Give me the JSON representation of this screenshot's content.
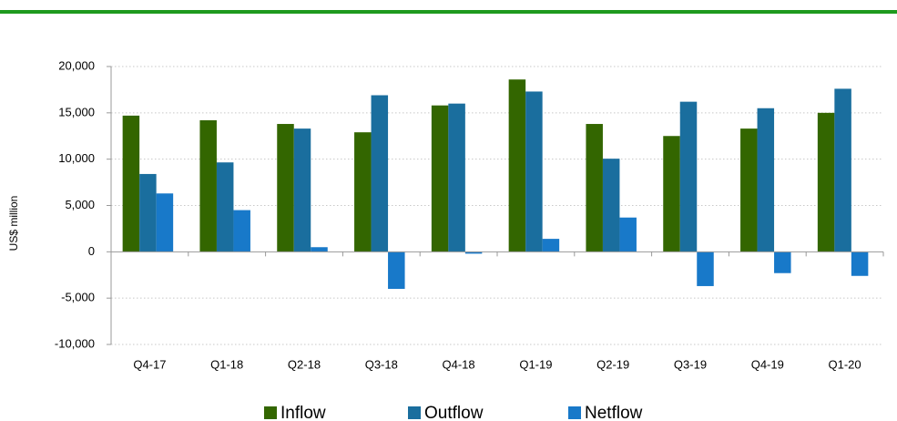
{
  "chart_data": {
    "type": "bar",
    "y_label": "US$ million",
    "categories": [
      "Q4-17",
      "Q1-18",
      "Q2-18",
      "Q3-18",
      "Q4-18",
      "Q1-19",
      "Q2-19",
      "Q3-19",
      "Q4-19",
      "Q1-20"
    ],
    "series": [
      {
        "name": "Inflow",
        "color": "#336600",
        "values": [
          14700,
          14200,
          13800,
          12900,
          15800,
          18600,
          13800,
          12500,
          13300,
          15000
        ]
      },
      {
        "name": "Outflow",
        "color": "#1a6e9e",
        "values": [
          8400,
          9650,
          13300,
          16900,
          16000,
          17300,
          10050,
          16200,
          15500,
          17600
        ]
      },
      {
        "name": "Netflow",
        "color": "#1879c9",
        "values": [
          6300,
          4500,
          500,
          -4000,
          -200,
          1400,
          3700,
          -3700,
          -2300,
          -2600
        ]
      }
    ],
    "ylim": [
      -10000,
      20000
    ],
    "yticks": [
      {
        "value": -10000,
        "label": "-10,000"
      },
      {
        "value": -5000,
        "label": "-5,000"
      },
      0,
      {
        "value": 5000,
        "label": "5,000"
      },
      {
        "value": 10000,
        "label": "10,000"
      },
      {
        "value": 15000,
        "label": "15,000"
      },
      {
        "value": 20000,
        "label": "20,000"
      }
    ],
    "grid": true
  }
}
